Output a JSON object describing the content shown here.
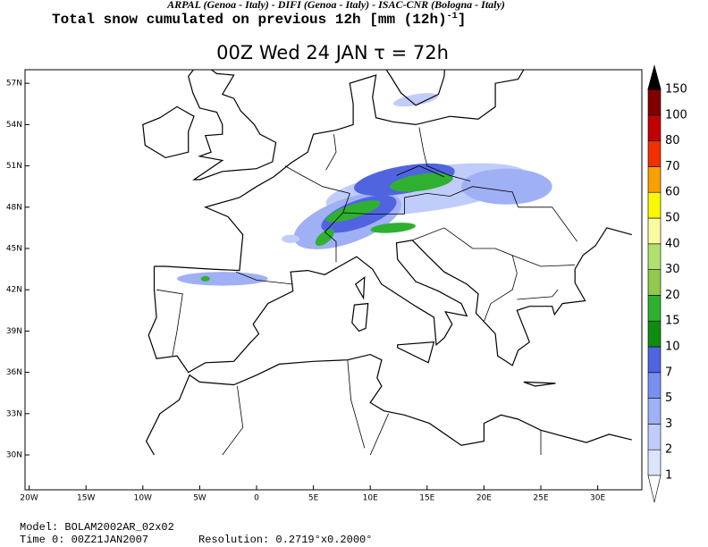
{
  "header": {
    "credits": "ARPAL (Genoa - Italy)  -  DIFI (Genoa - Italy)  -  ISAC-CNR (Bologna - Italy)",
    "title": "Total snow cumulated on previous 12h [mm (12h)",
    "title_exponent": "-1",
    "title_end": "]"
  },
  "map": {
    "title": "00Z Wed 24 JAN  τ = 72h",
    "lon_labels": [
      "20W",
      "15W",
      "10W",
      "5W",
      "0",
      "5E",
      "10E",
      "15E",
      "20E",
      "25E",
      "30E"
    ],
    "lat_labels": [
      "57N",
      "54N",
      "51N",
      "48N",
      "45N",
      "42N",
      "39N",
      "36N",
      "33N",
      "30N"
    ]
  },
  "legend": {
    "levels": [
      1,
      2,
      3,
      5,
      7,
      10,
      15,
      20,
      30,
      40,
      50,
      60,
      70,
      80,
      100,
      150
    ],
    "colors": [
      "#dce4fc",
      "#c0ccfa",
      "#a0b0f5",
      "#7890f0",
      "#5064e0",
      "#108c10",
      "#30b030",
      "#90c850",
      "#b0e070",
      "#fafaa0",
      "#f8f800",
      "#f8a000",
      "#f03000",
      "#c00000",
      "#800000"
    ]
  },
  "footer": {
    "model": "Model: BOLAM2002AR_02x02",
    "time": "Time 0: 00Z21JAN2007",
    "resolution": "Resolution: 0.2719°x0.2000°"
  }
}
